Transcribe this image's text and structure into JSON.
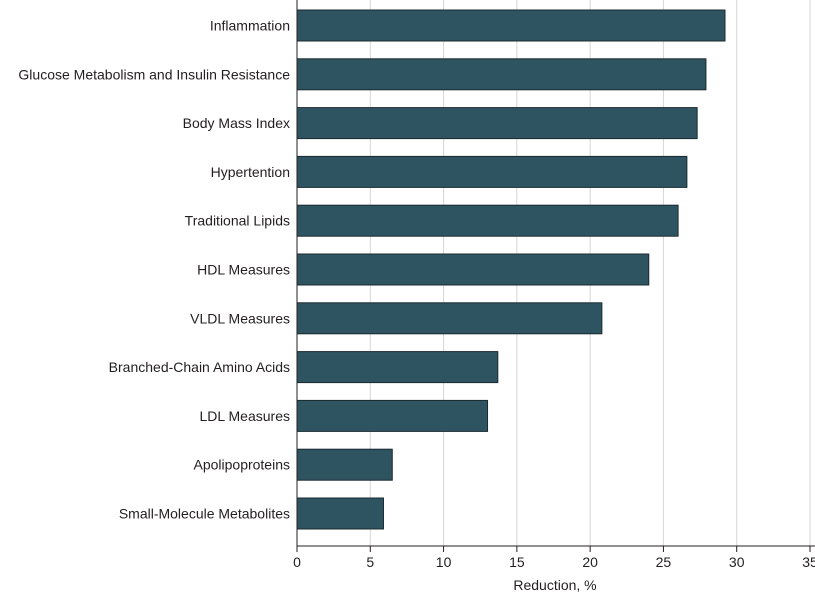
{
  "chart_data": {
    "type": "bar",
    "orientation": "horizontal",
    "categories": [
      "Inflammation",
      "Glucose Metabolism and Insulin Resistance",
      "Body Mass Index",
      "Hypertention",
      "Traditional Lipids",
      "HDL Measures",
      "VLDL Measures",
      "Branched-Chain Amino Acids",
      "LDL Measures",
      "Apolipoproteins",
      "Small-Molecule Metabolites"
    ],
    "values": [
      29.2,
      27.9,
      27.3,
      26.6,
      26.0,
      24.0,
      20.8,
      13.7,
      13.0,
      6.5,
      5.9
    ],
    "xlabel": "Reduction, %",
    "ylabel": "",
    "xlim": [
      0,
      35
    ],
    "xticks": [
      0,
      5,
      10,
      15,
      20,
      25,
      30,
      35
    ],
    "grid": "vertical",
    "bar_color": "#2f5461",
    "bar_edge_color": "#1a2a30"
  }
}
